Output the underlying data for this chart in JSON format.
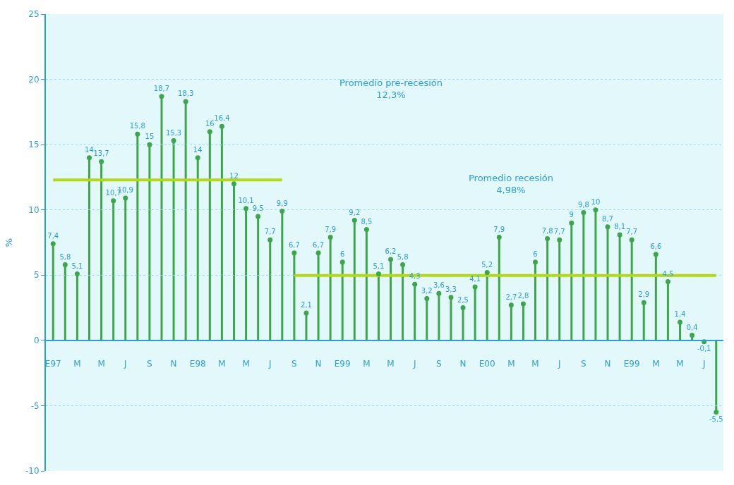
{
  "chart_data": {
    "type": "lollipop",
    "ylabel": "%",
    "categories": [
      "E97",
      null,
      "M",
      null,
      "M",
      null,
      "J",
      null,
      "S",
      null,
      "N",
      null,
      "E98",
      null,
      "M",
      null,
      "M",
      null,
      "J",
      null,
      "S",
      null,
      "N",
      null,
      "E99",
      null,
      "M",
      null,
      "M",
      null,
      "J",
      null,
      "S",
      null,
      "N",
      null,
      "E00",
      null,
      "M",
      null,
      "M",
      null,
      "J",
      null,
      "S",
      null,
      "N",
      null,
      "E99",
      null,
      "M",
      null,
      "M",
      null,
      "J",
      null
    ],
    "series": [
      {
        "color": "#3aa84a",
        "values": [
          7.4,
          5.8,
          5.1,
          14,
          13.7,
          10.7,
          10.9,
          15.8,
          15,
          18.7,
          15.3,
          18.3,
          14,
          16,
          16.4,
          12,
          10.1,
          9.5,
          7.7,
          9.9,
          6.7,
          2.1,
          6.7,
          7.9,
          6,
          9.2,
          8.5,
          5.1,
          6.2,
          5.8,
          4.3,
          3.2,
          3.6,
          3.3,
          2.5,
          4.1,
          5.2,
          7.9,
          2.7,
          2.8,
          6,
          7.8,
          7.7,
          9,
          9.8,
          10,
          8.7,
          8.1,
          7.7,
          2.9,
          6.6,
          4.5,
          1.4,
          0.4,
          -0.1,
          -5.5
        ],
        "value_labels": [
          "7,4",
          "5,8",
          "5,1",
          "14",
          "13,7",
          "10,7",
          "10,9",
          "15,8",
          "15",
          "18,7",
          "15,3",
          "18,3",
          "14",
          "16",
          "16,4",
          "12",
          "10,1",
          "9,5",
          "7,7",
          "9,9",
          "6,7",
          "2,1",
          "6,7",
          "7,9",
          "6",
          "9,2",
          "8,5",
          "5,1",
          "6,2",
          "5,8",
          "4,3",
          "3,2",
          "3,6",
          "3,3",
          "2,5",
          "4,1",
          "5,2",
          "7,9",
          "2,7",
          "2,8",
          "6",
          "7,8",
          "7,7",
          "9",
          "9,8",
          "10",
          "8,7",
          "8,1",
          "7,7",
          "2,9",
          "6,6",
          "4,5",
          "1,4",
          "0,4",
          "-0,1",
          "-5,5"
        ]
      },
      {
        "type": "line",
        "color": "#b5d90f",
        "marker": "none",
        "values": [
          12.3,
          12.3,
          12.3,
          12.3,
          12.3,
          12.3,
          12.3,
          12.3,
          12.3,
          12.3,
          12.3,
          12.3,
          12.3,
          12.3,
          12.3,
          12.3,
          12.3,
          12.3,
          12.3,
          12.3,
          null,
          null,
          null,
          null,
          null,
          null,
          null,
          null,
          null,
          null,
          null,
          null,
          null,
          null,
          null,
          null,
          null,
          null,
          null,
          null,
          null,
          null,
          null,
          null,
          null,
          null,
          null,
          null,
          null,
          null,
          null,
          null,
          null,
          null,
          null,
          null
        ]
      },
      {
        "type": "line",
        "color": "#b5d90f",
        "marker": "none",
        "values": [
          null,
          null,
          null,
          null,
          null,
          null,
          null,
          null,
          null,
          null,
          null,
          null,
          null,
          null,
          null,
          null,
          null,
          null,
          null,
          null,
          4.98,
          4.98,
          4.98,
          4.98,
          4.98,
          4.98,
          4.98,
          4.98,
          4.98,
          4.98,
          4.98,
          4.98,
          4.98,
          4.98,
          4.98,
          4.98,
          4.98,
          4.98,
          4.98,
          4.98,
          4.98,
          4.98,
          4.98,
          4.98,
          4.98,
          4.98,
          4.98,
          4.98,
          4.98,
          4.98,
          4.98,
          4.98,
          4.98,
          4.98,
          4.98,
          4.98
        ]
      }
    ],
    "annotations": [
      "Promedio pre-recesión\n12,3%",
      "Promedio recesión\n4,98%"
    ],
    "ylim": [
      -10,
      25
    ],
    "yticks": [
      -10,
      -5,
      0,
      5,
      10,
      15,
      20,
      25
    ],
    "grid": "y",
    "marker": "circle"
  }
}
